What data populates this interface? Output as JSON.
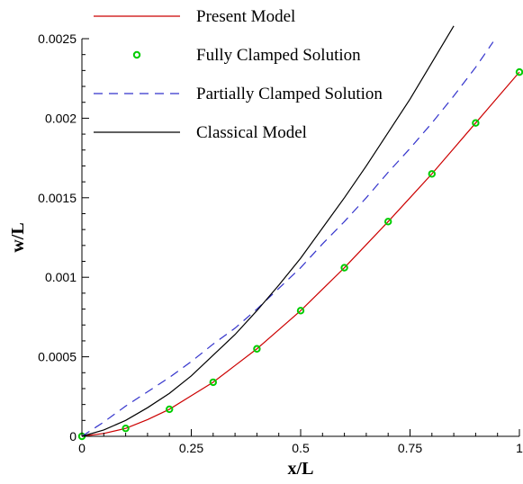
{
  "chart_data": {
    "type": "line",
    "xlabel": "x/L",
    "ylabel": "w/L",
    "xlim": [
      0,
      1
    ],
    "ylim": [
      0,
      0.0025
    ],
    "grid": false,
    "legend_placement": "top-left",
    "x_ticks": [
      "0",
      "0.25",
      "0.5",
      "0.75",
      "1"
    ],
    "y_ticks": [
      "0",
      "0.0005",
      "0.001",
      "0.0015",
      "0.002",
      "0.0025"
    ],
    "colors": {
      "present_model": "#cc0000",
      "fully_clamped": "#00cc00",
      "partially_clamped": "#3333cc",
      "classical_model": "#000000"
    },
    "series": [
      {
        "name": "Present Model",
        "style": "solid-line",
        "x": [
          0,
          0.05,
          0.1,
          0.15,
          0.2,
          0.25,
          0.3,
          0.35,
          0.4,
          0.45,
          0.5,
          0.55,
          0.6,
          0.65,
          0.7,
          0.75,
          0.8,
          0.85,
          0.9,
          0.95,
          1.0
        ],
        "y": [
          0,
          1.8e-05,
          5e-05,
          0.000105,
          0.00017,
          0.000255,
          0.00034,
          0.000445,
          0.00055,
          0.00067,
          0.00079,
          0.000925,
          0.00106,
          0.001205,
          0.00135,
          0.0015,
          0.00165,
          0.00181,
          0.00197,
          0.00213,
          0.00229
        ]
      },
      {
        "name": "Fully Clamped Solution",
        "style": "circle-markers",
        "x": [
          0,
          0.1,
          0.2,
          0.3,
          0.4,
          0.5,
          0.6,
          0.7,
          0.8,
          0.9,
          1.0
        ],
        "y": [
          0,
          5e-05,
          0.00017,
          0.00034,
          0.00055,
          0.00079,
          0.00106,
          0.00135,
          0.00165,
          0.00197,
          0.00229
        ]
      },
      {
        "name": "Partially Clamped Solution",
        "style": "dashed-line",
        "x": [
          0,
          0.05,
          0.1,
          0.15,
          0.2,
          0.25,
          0.3,
          0.35,
          0.4,
          0.45,
          0.5,
          0.55,
          0.6,
          0.65,
          0.7,
          0.75,
          0.8,
          0.85,
          0.9,
          0.94
        ],
        "y": [
          0,
          9e-05,
          0.00019,
          0.00028,
          0.00037,
          0.00047,
          0.00058,
          0.00068,
          0.0008,
          0.00093,
          0.00106,
          0.00121,
          0.00135,
          0.0015,
          0.00166,
          0.00181,
          0.00197,
          0.00214,
          0.00232,
          0.00248
        ]
      },
      {
        "name": "Classical Model",
        "style": "solid-line",
        "x": [
          0,
          0.05,
          0.1,
          0.15,
          0.2,
          0.25,
          0.3,
          0.35,
          0.4,
          0.45,
          0.5,
          0.55,
          0.6,
          0.65,
          0.7,
          0.75,
          0.8,
          0.85
        ],
        "y": [
          0,
          4e-05,
          0.0001,
          0.00018,
          0.00027,
          0.00038,
          0.00051,
          0.00064,
          0.00079,
          0.00095,
          0.00112,
          0.00131,
          0.0015,
          0.0017,
          0.00191,
          0.00212,
          0.00235,
          0.00258
        ]
      }
    ]
  }
}
